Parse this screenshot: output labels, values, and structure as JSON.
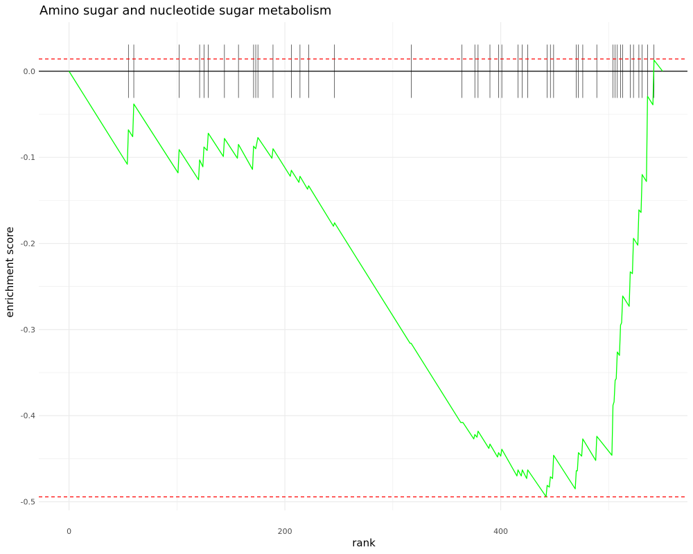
{
  "chart_data": {
    "type": "line",
    "title": "Amino sugar and nucleotide sugar metabolism",
    "xlabel": "rank",
    "ylabel": "enrichment score",
    "xlim": [
      -28,
      573
    ],
    "ylim": [
      -0.51,
      0.057
    ],
    "x_ticks": [
      0,
      200,
      400
    ],
    "y_ticks": [
      0.0,
      -0.1,
      -0.2,
      -0.3,
      -0.4,
      -0.5
    ],
    "x_tick_labels": [
      "0",
      "200",
      "400"
    ],
    "y_tick_labels": [
      "0.0",
      "-0.1",
      "-0.2",
      "-0.3",
      "-0.4",
      "-0.5"
    ],
    "grid": true,
    "colors": {
      "running_score": "#00ff00",
      "threshold": "#ff0000",
      "baseline": "#000000",
      "hits": "#000000",
      "grid": "#ebebeb"
    },
    "series": [
      {
        "values": [
          [
            0,
            0.0
          ],
          [
            54,
            -0.108
          ],
          [
            55,
            -0.068
          ],
          [
            59,
            -0.076
          ],
          [
            60,
            -0.038
          ],
          [
            101,
            -0.118
          ],
          [
            102,
            -0.091
          ],
          [
            120,
            -0.126
          ],
          [
            121,
            -0.103
          ],
          [
            124,
            -0.111
          ],
          [
            125,
            -0.088
          ],
          [
            128,
            -0.092
          ],
          [
            129,
            -0.072
          ],
          [
            143,
            -0.099
          ],
          [
            144,
            -0.078
          ],
          [
            156,
            -0.101
          ],
          [
            157,
            -0.085
          ],
          [
            170,
            -0.114
          ],
          [
            171,
            -0.087
          ],
          [
            173,
            -0.09
          ],
          [
            175,
            -0.077
          ],
          [
            188,
            -0.101
          ],
          [
            189,
            -0.09
          ],
          [
            205,
            -0.122
          ],
          [
            206,
            -0.115
          ],
          [
            213,
            -0.129
          ],
          [
            214,
            -0.122
          ],
          [
            221,
            -0.137
          ],
          [
            222,
            -0.133
          ],
          [
            245,
            -0.18
          ],
          [
            246,
            -0.176
          ],
          [
            316,
            -0.316
          ],
          [
            317,
            -0.316
          ],
          [
            363,
            -0.408
          ],
          [
            365,
            -0.408
          ],
          [
            375,
            -0.427
          ],
          [
            376,
            -0.422
          ],
          [
            378,
            -0.425
          ],
          [
            379,
            -0.418
          ],
          [
            389,
            -0.438
          ],
          [
            390,
            -0.433
          ],
          [
            397,
            -0.448
          ],
          [
            398,
            -0.443
          ],
          [
            400,
            -0.447
          ],
          [
            401,
            -0.439
          ],
          [
            415,
            -0.47
          ],
          [
            416,
            -0.463
          ],
          [
            419,
            -0.47
          ],
          [
            420,
            -0.463
          ],
          [
            424,
            -0.473
          ],
          [
            425,
            -0.463
          ],
          [
            442,
            -0.494
          ],
          [
            443,
            -0.481
          ],
          [
            445,
            -0.483
          ],
          [
            446,
            -0.471
          ],
          [
            448,
            -0.473
          ],
          [
            449,
            -0.446
          ],
          [
            469,
            -0.485
          ],
          [
            470,
            -0.464
          ],
          [
            471,
            -0.464
          ],
          [
            472,
            -0.443
          ],
          [
            475,
            -0.447
          ],
          [
            476,
            -0.427
          ],
          [
            488,
            -0.452
          ],
          [
            489,
            -0.424
          ],
          [
            503,
            -0.446
          ],
          [
            504,
            -0.388
          ],
          [
            505,
            -0.384
          ],
          [
            506,
            -0.359
          ],
          [
            507,
            -0.357
          ],
          [
            508,
            -0.326
          ],
          [
            510,
            -0.33
          ],
          [
            511,
            -0.295
          ],
          [
            512,
            -0.292
          ],
          [
            513,
            -0.261
          ],
          [
            519,
            -0.273
          ],
          [
            520,
            -0.233
          ],
          [
            522,
            -0.235
          ],
          [
            523,
            -0.194
          ],
          [
            527,
            -0.202
          ],
          [
            528,
            -0.161
          ],
          [
            530,
            -0.164
          ],
          [
            531,
            -0.12
          ],
          [
            535,
            -0.128
          ],
          [
            536,
            -0.029
          ],
          [
            541,
            -0.039
          ],
          [
            542,
            0.013
          ],
          [
            550,
            0.0
          ]
        ]
      }
    ],
    "hit_ranks": [
      55,
      60,
      102,
      121,
      125,
      129,
      144,
      157,
      171,
      173,
      175,
      189,
      206,
      214,
      222,
      246,
      317,
      364,
      376,
      379,
      390,
      398,
      401,
      416,
      420,
      425,
      443,
      446,
      449,
      470,
      472,
      476,
      489,
      504,
      506,
      508,
      511,
      513,
      520,
      523,
      528,
      531,
      536,
      542
    ],
    "hit_band_y": [
      0.031,
      -0.031
    ],
    "reference_lines": {
      "baseline": 0.0,
      "upper_threshold": 0.0143,
      "lower_threshold": -0.4943
    }
  }
}
